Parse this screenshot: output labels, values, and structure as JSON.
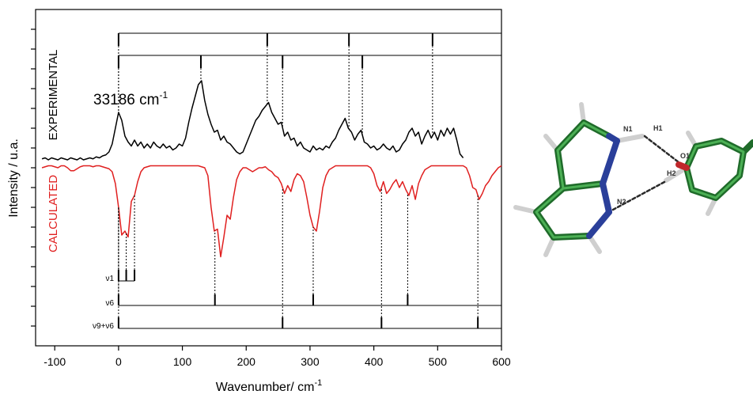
{
  "chart_data": {
    "type": "line",
    "xlabel": {
      "text": "Wavenumber/ cm",
      "sup": "-1"
    },
    "ylabel": "Intensity / u.a.",
    "annotation": {
      "text": "33186 cm",
      "sup": "-1"
    },
    "xlim": [
      -130,
      600
    ],
    "xticks": [
      -100,
      0,
      100,
      200,
      300,
      400,
      500,
      600
    ],
    "ylim": [
      0,
      17
    ],
    "yticks": [
      1,
      2,
      3,
      4,
      5,
      6,
      7,
      8,
      9,
      10,
      11,
      12,
      13,
      14,
      15,
      16
    ],
    "ytick_labels": false,
    "x": [
      -120,
      -115,
      -110,
      -105,
      -100,
      -95,
      -90,
      -85,
      -80,
      -75,
      -70,
      -65,
      -60,
      -55,
      -50,
      -45,
      -40,
      -35,
      -30,
      -25,
      -20,
      -15,
      -10,
      -5,
      0,
      5,
      10,
      15,
      20,
      25,
      30,
      35,
      40,
      45,
      50,
      55,
      60,
      65,
      70,
      75,
      80,
      85,
      90,
      95,
      100,
      105,
      110,
      115,
      120,
      125,
      130,
      135,
      140,
      145,
      150,
      155,
      160,
      165,
      170,
      175,
      180,
      185,
      190,
      195,
      200,
      205,
      210,
      215,
      220,
      225,
      230,
      235,
      240,
      245,
      250,
      255,
      260,
      265,
      270,
      275,
      280,
      285,
      290,
      295,
      300,
      305,
      310,
      315,
      320,
      325,
      330,
      335,
      340,
      345,
      350,
      355,
      360,
      365,
      370,
      375,
      380,
      385,
      390,
      395,
      400,
      405,
      410,
      415,
      420,
      425,
      430,
      435,
      440,
      445,
      450,
      455,
      460,
      465,
      470,
      475,
      480,
      485,
      490,
      495,
      500,
      505,
      510,
      515,
      520,
      525,
      530,
      535,
      540,
      545,
      550,
      555,
      560,
      565,
      570,
      575,
      580,
      585,
      590,
      595,
      600
    ],
    "series": [
      {
        "name": "EXPERIMENTAL",
        "color": "#000000",
        "values": [
          9.45,
          9.5,
          9.4,
          9.5,
          9.45,
          9.4,
          9.5,
          9.45,
          9.4,
          9.5,
          9.45,
          9.4,
          9.5,
          9.4,
          9.45,
          9.5,
          9.45,
          9.55,
          9.5,
          9.6,
          9.65,
          9.8,
          10.2,
          11.0,
          11.8,
          11.4,
          10.6,
          10.3,
          10.1,
          10.4,
          10.1,
          10.3,
          10.0,
          10.2,
          10.0,
          10.3,
          10.1,
          10.0,
          10.2,
          10.0,
          10.1,
          9.9,
          10.0,
          10.2,
          10.1,
          10.5,
          11.3,
          12.0,
          12.6,
          13.2,
          13.4,
          12.4,
          11.7,
          11.2,
          10.8,
          10.9,
          10.4,
          10.6,
          10.3,
          10.2,
          10.0,
          9.8,
          9.7,
          9.8,
          10.2,
          10.6,
          11.0,
          11.4,
          11.6,
          11.9,
          12.1,
          12.3,
          11.8,
          11.5,
          11.2,
          11.3,
          10.6,
          10.8,
          10.4,
          10.5,
          10.1,
          10.3,
          10.0,
          9.9,
          9.8,
          10.1,
          9.9,
          10.0,
          9.9,
          10.1,
          10.0,
          10.3,
          10.5,
          10.9,
          11.2,
          11.5,
          11.0,
          10.8,
          10.4,
          10.7,
          10.9,
          10.3,
          10.2,
          10.0,
          10.1,
          9.9,
          10.0,
          10.2,
          10.0,
          9.9,
          10.1,
          9.8,
          9.9,
          10.2,
          10.4,
          10.8,
          11.0,
          10.6,
          10.8,
          10.2,
          10.6,
          10.9,
          10.5,
          10.8,
          10.4,
          10.9,
          10.6,
          11.0,
          10.7,
          11.0,
          10.4,
          9.7,
          9.5,
          null,
          null,
          null,
          null,
          null,
          null,
          null,
          null,
          null,
          null,
          null,
          null
        ]
      },
      {
        "name": "CALCULATED",
        "color": "#e02020",
        "values": [
          9.0,
          9.05,
          9.1,
          9.1,
          9.05,
          9.0,
          9.1,
          9.1,
          9.0,
          8.85,
          8.85,
          8.95,
          9.05,
          9.1,
          9.1,
          9.1,
          9.05,
          9.1,
          9.1,
          9.05,
          9.0,
          8.95,
          8.8,
          8.2,
          7.0,
          5.6,
          5.8,
          5.5,
          7.3,
          7.6,
          8.3,
          8.8,
          9.0,
          9.05,
          9.1,
          9.1,
          9.1,
          9.1,
          9.1,
          9.1,
          9.1,
          9.1,
          9.1,
          9.1,
          9.1,
          9.1,
          9.1,
          9.1,
          9.1,
          9.1,
          9.05,
          9.0,
          8.6,
          7.0,
          5.8,
          5.9,
          4.5,
          5.5,
          6.6,
          6.4,
          7.5,
          8.4,
          8.8,
          9.0,
          9.0,
          8.9,
          8.8,
          8.9,
          9.0,
          9.0,
          9.05,
          8.9,
          8.8,
          8.6,
          8.5,
          8.2,
          7.7,
          8.1,
          7.8,
          8.4,
          8.7,
          8.6,
          8.3,
          7.5,
          6.6,
          6.0,
          5.8,
          6.8,
          8.0,
          8.6,
          8.9,
          9.0,
          9.1,
          9.1,
          9.1,
          9.1,
          9.1,
          9.1,
          9.1,
          9.1,
          9.1,
          9.1,
          9.1,
          9.0,
          8.7,
          8.1,
          7.8,
          8.3,
          7.7,
          7.9,
          8.2,
          8.4,
          8.0,
          8.3,
          7.9,
          7.6,
          8.1,
          7.4,
          8.2,
          8.6,
          8.9,
          9.0,
          9.1,
          9.1,
          9.1,
          9.1,
          9.1,
          9.1,
          9.1,
          9.1,
          9.1,
          9.1,
          9.1,
          9.0,
          8.6,
          8.0,
          7.9,
          7.4,
          7.7,
          8.1,
          8.3,
          8.6,
          8.8,
          9.0,
          9.1
        ]
      }
    ],
    "assignments": {
      "experimental": [
        [
          0,
          233,
          361,
          492
        ],
        [
          0,
          129,
          257,
          382
        ]
      ],
      "calculated": [
        {
          "label": "ν1",
          "positions": [
            0,
            12,
            25
          ]
        },
        {
          "label": "ν6",
          "positions": [
            0,
            151,
            305,
            453
          ]
        },
        {
          "label": "ν9+ν6",
          "positions": [
            0,
            257,
            412,
            563
          ]
        }
      ]
    }
  },
  "molecule": {
    "labels": [
      "N1",
      "H1",
      "O1",
      "H2",
      "N2"
    ]
  }
}
